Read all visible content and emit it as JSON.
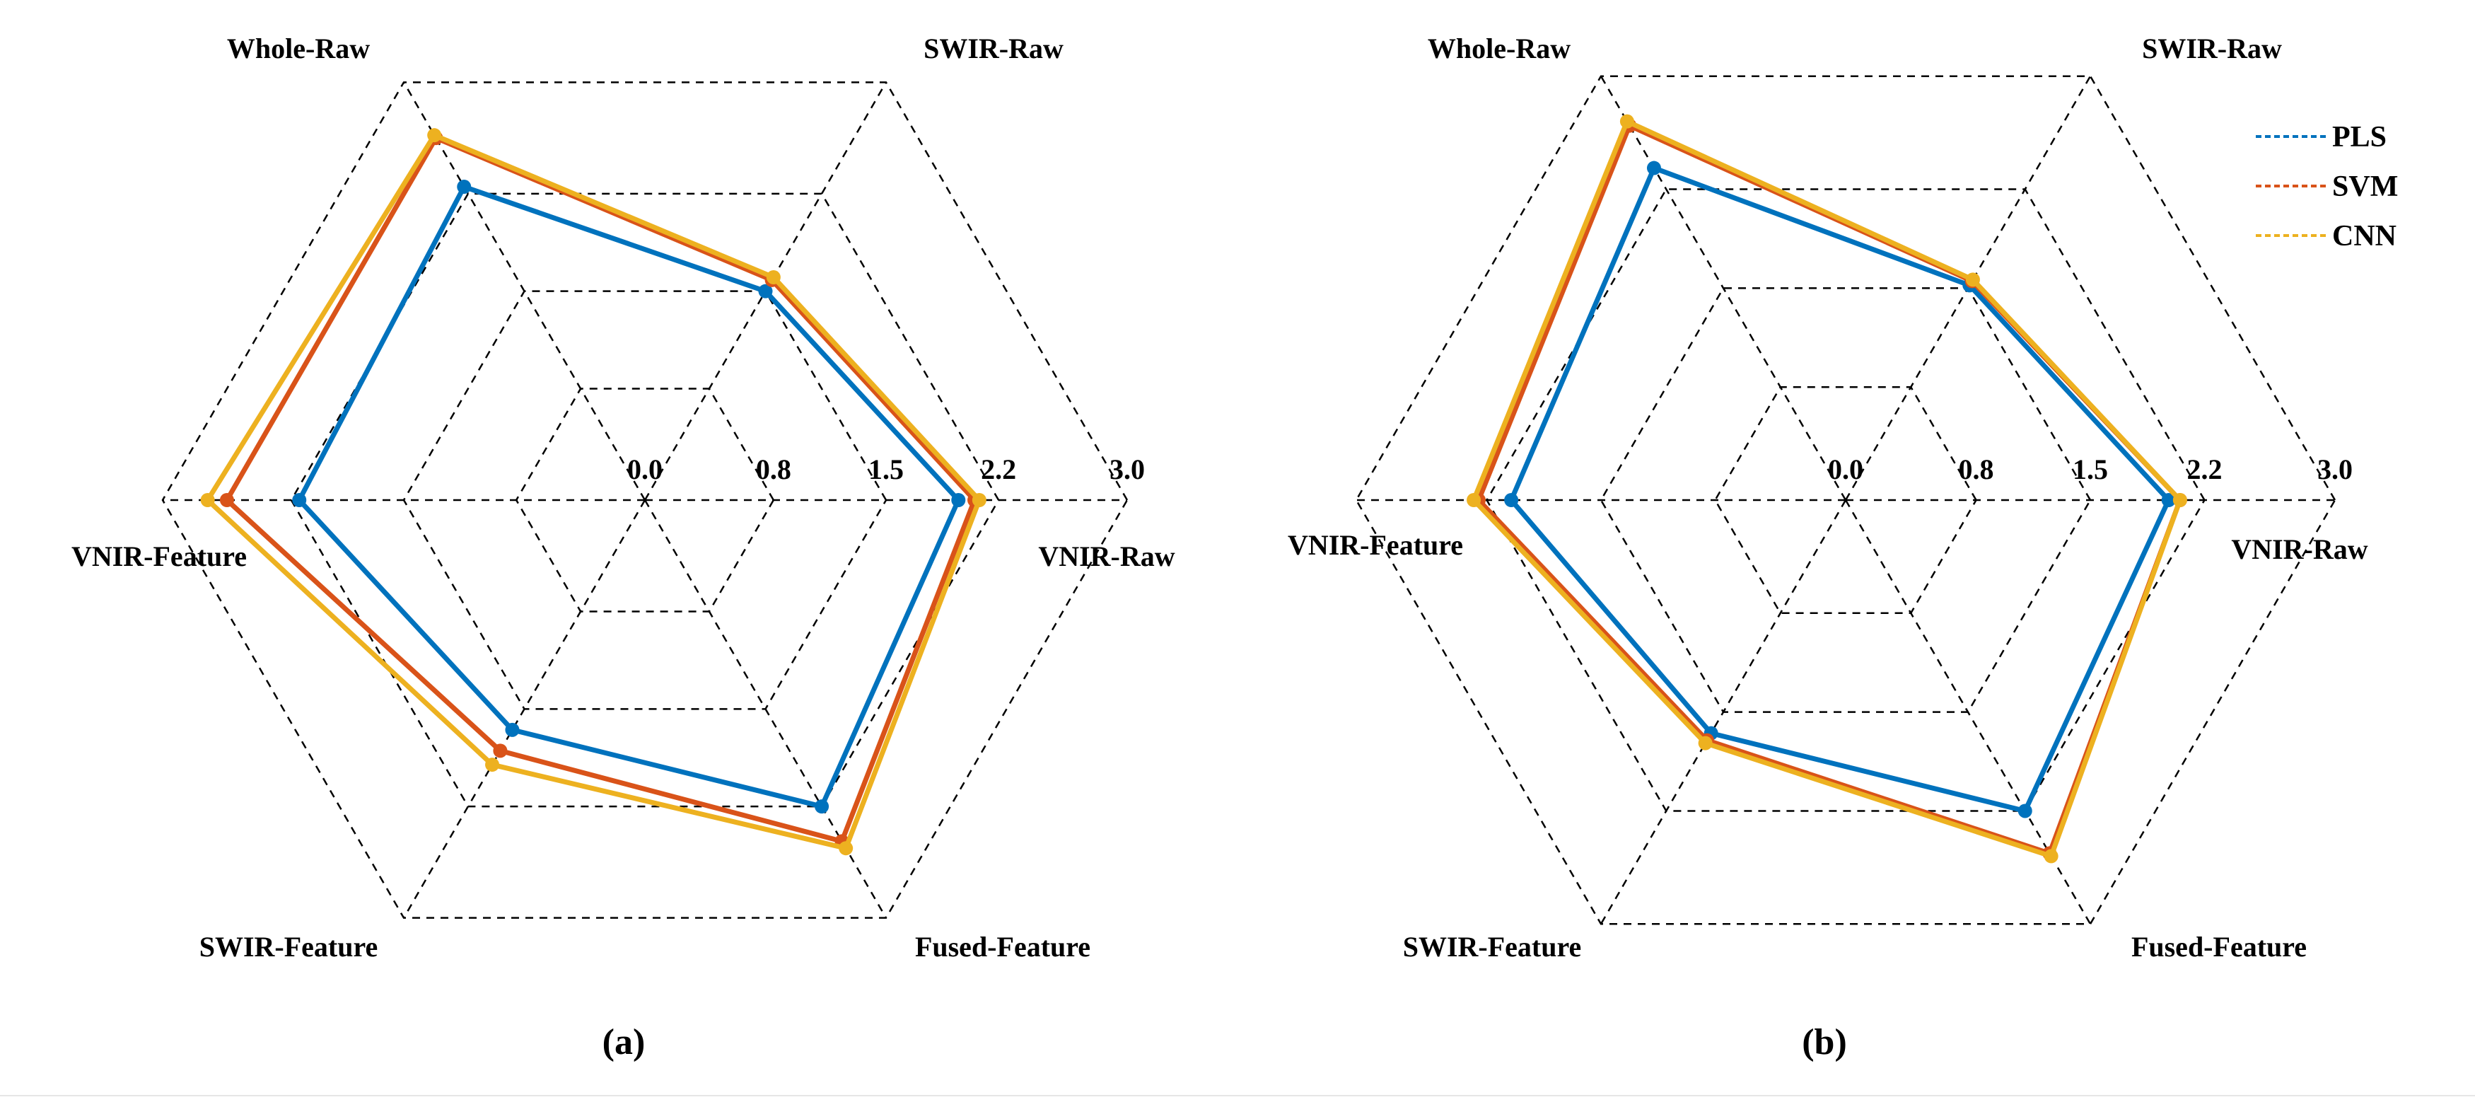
{
  "chart_data": [
    {
      "type": "radar",
      "panel_label": "(a)",
      "axes": [
        "VNIR-Raw",
        "SWIR-Raw",
        "Whole-Raw",
        "VNIR-Feature",
        "SWIR-Feature",
        "Fused-Feature"
      ],
      "rings": [
        0.0,
        0.8,
        1.5,
        2.2,
        3.0
      ],
      "ring_labels": [
        "0.0",
        "0.8",
        "1.5",
        "2.2",
        "3.0"
      ],
      "range": [
        0,
        3.0
      ],
      "series": [
        {
          "name": "PLS",
          "values": [
            1.95,
            1.5,
            2.25,
            2.15,
            1.65,
            2.2
          ]
        },
        {
          "name": "SVM",
          "values": [
            2.05,
            1.58,
            2.6,
            2.6,
            1.8,
            2.45
          ]
        },
        {
          "name": "CNN",
          "values": [
            2.08,
            1.6,
            2.62,
            2.72,
            1.9,
            2.5
          ]
        }
      ]
    },
    {
      "type": "radar",
      "panel_label": "(b)",
      "axes": [
        "VNIR-Raw",
        "SWIR-Raw",
        "Whole-Raw",
        "VNIR-Feature",
        "SWIR-Feature",
        "Fused-Feature"
      ],
      "rings": [
        0.0,
        0.8,
        1.5,
        2.2,
        3.0
      ],
      "ring_labels": [
        "0.0",
        "0.8",
        "1.5",
        "2.2",
        "3.0"
      ],
      "range": [
        0,
        3.0
      ],
      "series": [
        {
          "name": "PLS",
          "values": [
            1.98,
            1.52,
            2.35,
            2.05,
            1.65,
            2.2
          ]
        },
        {
          "name": "SVM",
          "values": [
            2.05,
            1.55,
            2.65,
            2.25,
            1.7,
            2.5
          ]
        },
        {
          "name": "CNN",
          "values": [
            2.05,
            1.56,
            2.68,
            2.28,
            1.72,
            2.52
          ]
        }
      ]
    }
  ],
  "legend": [
    {
      "name": "PLS",
      "color": "#0072BD"
    },
    {
      "name": "SVM",
      "color": "#D95319"
    },
    {
      "name": "CNN",
      "color": "#EDB120"
    }
  ]
}
